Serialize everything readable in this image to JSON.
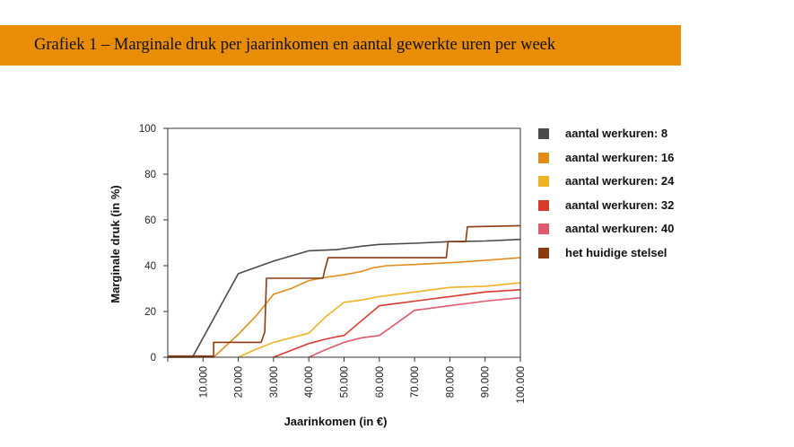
{
  "header": {
    "title": "Grafiek 1 – Marginale druk per jaarinkomen en aantal gewerkte uren per week",
    "background": "#e98c06"
  },
  "chart_data": {
    "type": "line",
    "xlabel": "Jaarinkomen (in €)",
    "ylabel": "Marginale druk (in %)",
    "xlim": [
      0,
      100000
    ],
    "ylim": [
      0,
      100
    ],
    "x_ticks": [
      "10.000",
      "20.000",
      "30.000",
      "40.000",
      "50.000",
      "60.000",
      "70.000",
      "80.000",
      "90.000",
      "100.000"
    ],
    "y_ticks": [
      "0",
      "20",
      "40",
      "60",
      "80",
      "100"
    ],
    "legend_position": "right",
    "grid": false,
    "series": [
      {
        "name": "aantal werkuren: 8",
        "color": "#4a4a4a",
        "points": [
          [
            0,
            0
          ],
          [
            7000,
            0
          ],
          [
            20000,
            36.5
          ],
          [
            30000,
            42
          ],
          [
            40000,
            46.5
          ],
          [
            48000,
            47
          ],
          [
            55000,
            48.5
          ],
          [
            60000,
            49.3
          ],
          [
            70000,
            49.8
          ],
          [
            80000,
            50.5
          ],
          [
            90000,
            50.8
          ],
          [
            100000,
            51.5
          ]
        ]
      },
      {
        "name": "aantal werkuren: 16",
        "color": "#e08e1b",
        "points": [
          [
            0,
            0
          ],
          [
            13000,
            0
          ],
          [
            20000,
            10
          ],
          [
            25000,
            18
          ],
          [
            30000,
            27.5
          ],
          [
            35000,
            30
          ],
          [
            40000,
            33.5
          ],
          [
            45000,
            35
          ],
          [
            50000,
            36
          ],
          [
            55000,
            37.5
          ],
          [
            58000,
            39
          ],
          [
            62000,
            40
          ],
          [
            70000,
            40.5
          ],
          [
            80000,
            41.3
          ],
          [
            90000,
            42.3
          ],
          [
            100000,
            43.5
          ]
        ]
      },
      {
        "name": "aantal werkuren: 24",
        "color": "#f0b225",
        "points": [
          [
            20000,
            0
          ],
          [
            25000,
            3.5
          ],
          [
            30000,
            6.5
          ],
          [
            35000,
            8.5
          ],
          [
            40000,
            10.5
          ],
          [
            45000,
            18
          ],
          [
            50000,
            24
          ],
          [
            55000,
            25
          ],
          [
            60000,
            26.5
          ],
          [
            70000,
            28.5
          ],
          [
            80000,
            30.5
          ],
          [
            90000,
            31
          ],
          [
            100000,
            32.5
          ]
        ]
      },
      {
        "name": "aantal werkuren: 32",
        "color": "#d83a2b",
        "points": [
          [
            30000,
            0
          ],
          [
            35000,
            3
          ],
          [
            40000,
            6
          ],
          [
            45000,
            8
          ],
          [
            48000,
            9
          ],
          [
            50000,
            9.5
          ],
          [
            55000,
            16
          ],
          [
            60000,
            22.5
          ],
          [
            65000,
            23.5
          ],
          [
            70000,
            24.5
          ],
          [
            80000,
            26.5
          ],
          [
            90000,
            28.5
          ],
          [
            100000,
            29.5
          ]
        ]
      },
      {
        "name": "aantal werkuren: 40",
        "color": "#e05a6e",
        "points": [
          [
            40000,
            0
          ],
          [
            45000,
            3.5
          ],
          [
            50000,
            6.5
          ],
          [
            55000,
            8.5
          ],
          [
            60000,
            9.5
          ],
          [
            65000,
            15
          ],
          [
            70000,
            20.5
          ],
          [
            75000,
            21.5
          ],
          [
            80000,
            22.5
          ],
          [
            90000,
            24.5
          ],
          [
            100000,
            26
          ]
        ]
      },
      {
        "name": "het huidige stelsel",
        "color": "#8b3a10",
        "points": [
          [
            0,
            0.5
          ],
          [
            12000,
            0.5
          ],
          [
            13000,
            0.5
          ],
          [
            13000,
            6.5
          ],
          [
            26500,
            6.5
          ],
          [
            27500,
            11
          ],
          [
            28000,
            34.5
          ],
          [
            44000,
            34.5
          ],
          [
            44500,
            38
          ],
          [
            45500,
            43.5
          ],
          [
            79000,
            43.5
          ],
          [
            79500,
            50.5
          ],
          [
            84500,
            50.5
          ],
          [
            85000,
            57
          ],
          [
            100000,
            57.5
          ]
        ]
      }
    ]
  }
}
